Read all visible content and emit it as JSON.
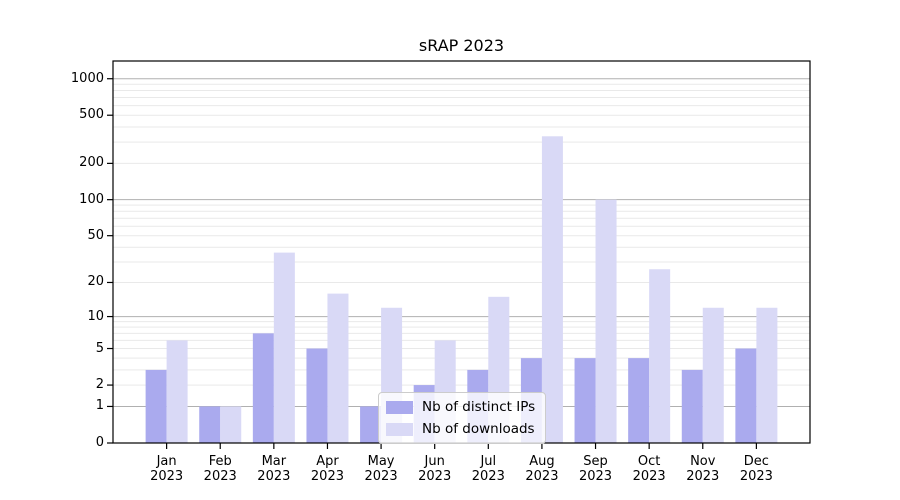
{
  "chart_data": {
    "type": "bar",
    "title": "sRAP 2023",
    "yscale": "log1p",
    "ylim": [
      0,
      1400
    ],
    "yticks": [
      0,
      1,
      2,
      5,
      10,
      20,
      50,
      100,
      200,
      500,
      1000
    ],
    "grid": {
      "major_at": [
        1,
        10,
        100,
        1000
      ],
      "minor": "log decades 2-9"
    },
    "categories": [
      "Jan",
      "Feb",
      "Mar",
      "Apr",
      "May",
      "Jun",
      "Jul",
      "Aug",
      "Sep",
      "Oct",
      "Nov",
      "Dec"
    ],
    "year": "2023",
    "legend_position": "inside-bottom-center",
    "series": [
      {
        "name": "Nb of distinct IPs",
        "color": "#aaaaee",
        "values": [
          3,
          1,
          7,
          5,
          1,
          2,
          3,
          4,
          4,
          4,
          3,
          5
        ]
      },
      {
        "name": "Nb of downloads",
        "color": "#d9d9f6",
        "values": [
          6,
          1,
          36,
          16,
          12,
          6,
          15,
          335,
          100,
          26,
          12,
          12
        ]
      }
    ]
  }
}
